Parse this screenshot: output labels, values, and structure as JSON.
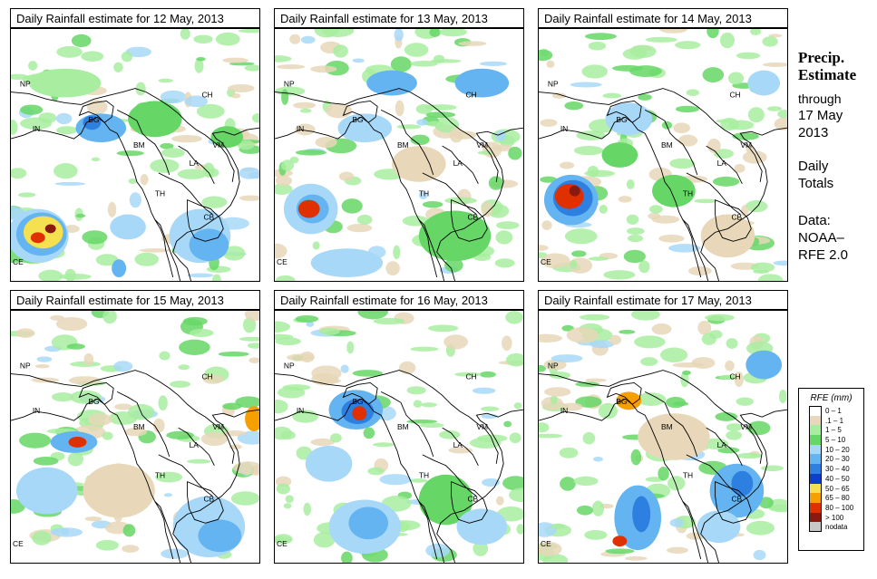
{
  "panels": [
    {
      "title": "Daily Rainfall estimate for  12 May, 2013"
    },
    {
      "title": "Daily Rainfall estimate for  13 May, 2013"
    },
    {
      "title": "Daily Rainfall estimate for  14 May, 2013"
    },
    {
      "title": "Daily Rainfall estimate for  15 May, 2013"
    },
    {
      "title": "Daily Rainfall estimate for  16 May, 2013"
    },
    {
      "title": "Daily Rainfall estimate for  17 May, 2013"
    }
  ],
  "country_labels": {
    "np": "NP",
    "ch": "CH",
    "in": "IN",
    "bg": "BG",
    "bm": "BM",
    "vm": "VM",
    "la": "LA",
    "th": "TH",
    "cb": "CB",
    "ce": "CE"
  },
  "side": {
    "title_line1": "Precip.",
    "title_line2": "Estimate",
    "through": "through",
    "date_line1": "17 May",
    "date_line2": "2013",
    "daily": "Daily",
    "totals": "Totals",
    "data": "Data:",
    "noaa": "NOAA–",
    "rfe": "RFE 2.0"
  },
  "legend": {
    "title": "RFE (mm)",
    "items": [
      {
        "label": "0 – 1",
        "color": "#ffffff"
      },
      {
        "label": ".1 – 1",
        "color": "#e8d7b8"
      },
      {
        "label": "1 – 5",
        "color": "#a8eda0"
      },
      {
        "label": "5 – 10",
        "color": "#66d766"
      },
      {
        "label": "10 – 20",
        "color": "#a8d8f8"
      },
      {
        "label": "20 – 30",
        "color": "#63b4f0"
      },
      {
        "label": "30 – 40",
        "color": "#2d7fe0"
      },
      {
        "label": "40 – 50",
        "color": "#0f3fc8"
      },
      {
        "label": "50 – 65",
        "color": "#f5e050"
      },
      {
        "label": "65 – 80",
        "color": "#f5a000"
      },
      {
        "label": "80 – 100",
        "color": "#e03000"
      },
      {
        "label": "> 100",
        "color": "#8a1a10"
      },
      {
        "label": "nodata",
        "color": "#c8c8c8"
      }
    ]
  }
}
